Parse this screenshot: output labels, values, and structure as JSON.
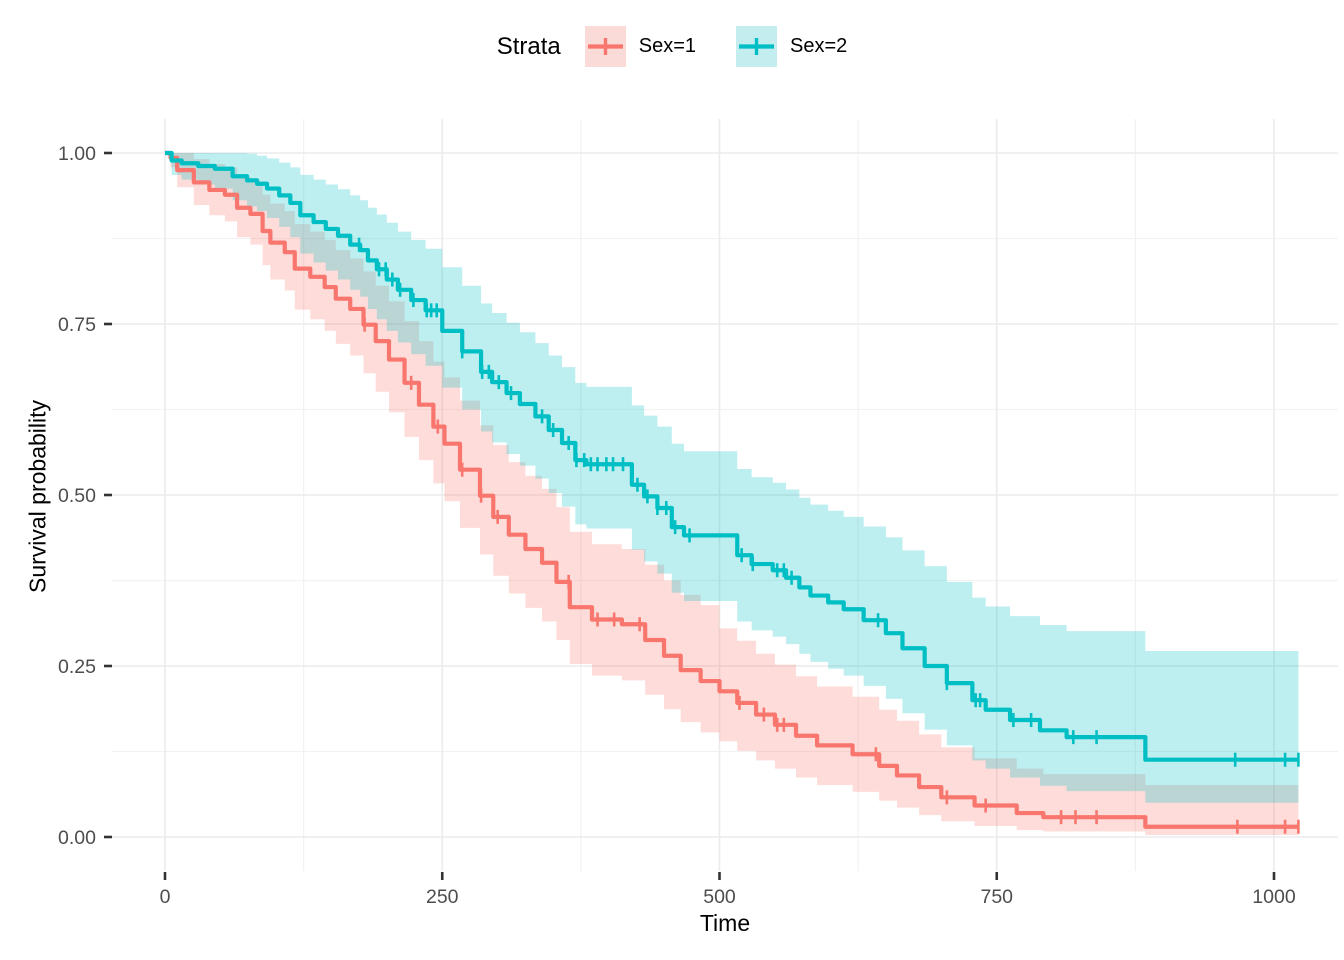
{
  "figure": {
    "background": "#ffffff"
  },
  "legend": {
    "title": "Strata",
    "items": [
      {
        "label": "Sex=1",
        "color": "#F8766D",
        "fill": "#FBDBD8"
      },
      {
        "label": "Sex=2",
        "color": "#00BFC4",
        "fill": "#C4EDEF"
      }
    ]
  },
  "chart_data": {
    "type": "line",
    "subtype": "kaplan-meier-step-with-confidence-bands",
    "title": "",
    "xlabel": "Time",
    "ylabel": "Survival probability",
    "xlim": [
      0,
      1022
    ],
    "ylim": [
      0,
      1
    ],
    "xticks": [
      0,
      250,
      500,
      750,
      1000
    ],
    "yticks": [
      0,
      0.25,
      0.5,
      0.75,
      1
    ],
    "minor_xticks": [
      125,
      375,
      625,
      875
    ],
    "minor_yticks": [
      0.125,
      0.375,
      0.625,
      0.875
    ],
    "grid": true,
    "legend_position": "top",
    "band_opacity": 0.26,
    "grid_major_color": "#EBEBEB",
    "grid_minor_color": "#F2F2F2",
    "tick_color": "#333333",
    "tick_label_color": "#4D4D4D",
    "t_end": 1022,
    "series": [
      {
        "name": "Sex=1",
        "color": "#F8766D",
        "points": [
          [
            0,
            1,
            1,
            1
          ],
          [
            5,
            0.993,
            0.979,
            1
          ],
          [
            11,
            0.975,
            0.95,
            1
          ],
          [
            26,
            0.957,
            0.924,
            0.991
          ],
          [
            40,
            0.946,
            0.909,
            0.984
          ],
          [
            54,
            0.939,
            0.9,
            0.979
          ],
          [
            65,
            0.92,
            0.877,
            0.965
          ],
          [
            77,
            0.911,
            0.866,
            0.958
          ],
          [
            88,
            0.886,
            0.836,
            0.939
          ],
          [
            95,
            0.869,
            0.815,
            0.926
          ],
          [
            108,
            0.855,
            0.799,
            0.915
          ],
          [
            117,
            0.831,
            0.771,
            0.896
          ],
          [
            131,
            0.819,
            0.757,
            0.885
          ],
          [
            144,
            0.804,
            0.74,
            0.873
          ],
          [
            154,
            0.787,
            0.721,
            0.858
          ],
          [
            167,
            0.772,
            0.704,
            0.846
          ],
          [
            179,
            0.749,
            0.678,
            0.827
          ],
          [
            190,
            0.725,
            0.651,
            0.806
          ],
          [
            202,
            0.698,
            0.621,
            0.783
          ],
          [
            216,
            0.664,
            0.585,
            0.754
          ],
          [
            229,
            0.632,
            0.551,
            0.725
          ],
          [
            242,
            0.6,
            0.517,
            0.695
          ],
          [
            252,
            0.575,
            0.491,
            0.672
          ],
          [
            266,
            0.537,
            0.452,
            0.638
          ],
          [
            284,
            0.499,
            0.413,
            0.602
          ],
          [
            296,
            0.468,
            0.382,
            0.573
          ],
          [
            310,
            0.442,
            0.356,
            0.548
          ],
          [
            325,
            0.421,
            0.335,
            0.528
          ],
          [
            340,
            0.401,
            0.315,
            0.509
          ],
          [
            353,
            0.373,
            0.288,
            0.482
          ],
          [
            365,
            0.336,
            0.253,
            0.446
          ],
          [
            385,
            0.318,
            0.236,
            0.428
          ],
          [
            412,
            0.311,
            0.229,
            0.421
          ],
          [
            433,
            0.288,
            0.208,
            0.398
          ],
          [
            450,
            0.265,
            0.187,
            0.375
          ],
          [
            465,
            0.244,
            0.168,
            0.354
          ],
          [
            483,
            0.228,
            0.153,
            0.339
          ],
          [
            500,
            0.213,
            0.14,
            0.305
          ],
          [
            516,
            0.196,
            0.126,
            0.287
          ],
          [
            533,
            0.179,
            0.112,
            0.268
          ],
          [
            550,
            0.164,
            0.1,
            0.252
          ],
          [
            569,
            0.148,
            0.087,
            0.235
          ],
          [
            588,
            0.134,
            0.076,
            0.22
          ],
          [
            620,
            0.121,
            0.066,
            0.205
          ],
          [
            644,
            0.104,
            0.053,
            0.186
          ],
          [
            660,
            0.09,
            0.043,
            0.17
          ],
          [
            680,
            0.073,
            0.032,
            0.15
          ],
          [
            700,
            0.058,
            0.023,
            0.131
          ],
          [
            730,
            0.046,
            0.016,
            0.115
          ],
          [
            768,
            0.035,
            0.01,
            0.1
          ],
          [
            792,
            0.029,
            0.008,
            0.092
          ],
          [
            884,
            0.015,
            0.003,
            0.076
          ]
        ],
        "censor_times": [
          180,
          222,
          246,
          268,
          285,
          300,
          364,
          390,
          405,
          428,
          518,
          540,
          552,
          558,
          641,
          705,
          740,
          808,
          821,
          840,
          967,
          1010,
          1022
        ]
      },
      {
        "name": "Sex=2",
        "color": "#00BFC4",
        "points": [
          [
            0,
            1,
            1,
            1
          ],
          [
            6,
            0.989,
            0.968,
            1
          ],
          [
            15,
            0.985,
            0.961,
            1
          ],
          [
            30,
            0.981,
            0.954,
            1
          ],
          [
            45,
            0.977,
            0.948,
            1
          ],
          [
            61,
            0.966,
            0.931,
            1
          ],
          [
            74,
            0.96,
            0.922,
            0.999
          ],
          [
            83,
            0.955,
            0.915,
            0.996
          ],
          [
            92,
            0.948,
            0.905,
            0.992
          ],
          [
            103,
            0.938,
            0.892,
            0.986
          ],
          [
            113,
            0.927,
            0.877,
            0.979
          ],
          [
            122,
            0.909,
            0.853,
            0.968
          ],
          [
            134,
            0.899,
            0.84,
            0.961
          ],
          [
            145,
            0.889,
            0.828,
            0.954
          ],
          [
            156,
            0.879,
            0.815,
            0.947
          ],
          [
            167,
            0.866,
            0.8,
            0.938
          ],
          [
            176,
            0.858,
            0.79,
            0.931
          ],
          [
            183,
            0.843,
            0.772,
            0.92
          ],
          [
            191,
            0.83,
            0.757,
            0.91
          ],
          [
            200,
            0.815,
            0.74,
            0.898
          ],
          [
            210,
            0.8,
            0.723,
            0.885
          ],
          [
            222,
            0.785,
            0.706,
            0.873
          ],
          [
            235,
            0.77,
            0.689,
            0.86
          ],
          [
            250,
            0.74,
            0.657,
            0.833
          ],
          [
            268,
            0.71,
            0.625,
            0.806
          ],
          [
            285,
            0.68,
            0.593,
            0.78
          ],
          [
            295,
            0.665,
            0.577,
            0.766
          ],
          [
            308,
            0.649,
            0.56,
            0.752
          ],
          [
            320,
            0.633,
            0.543,
            0.738
          ],
          [
            334,
            0.615,
            0.524,
            0.722
          ],
          [
            346,
            0.595,
            0.503,
            0.704
          ],
          [
            358,
            0.576,
            0.483,
            0.687
          ],
          [
            370,
            0.551,
            0.457,
            0.664
          ],
          [
            380,
            0.545,
            0.451,
            0.658
          ],
          [
            421,
            0.515,
            0.42,
            0.631
          ],
          [
            432,
            0.498,
            0.403,
            0.616
          ],
          [
            444,
            0.481,
            0.385,
            0.6
          ],
          [
            457,
            0.453,
            0.357,
            0.575
          ],
          [
            468,
            0.441,
            0.345,
            0.564
          ],
          [
            516,
            0.412,
            0.315,
            0.538
          ],
          [
            529,
            0.399,
            0.302,
            0.526
          ],
          [
            548,
            0.39,
            0.293,
            0.518
          ],
          [
            560,
            0.379,
            0.282,
            0.508
          ],
          [
            572,
            0.365,
            0.268,
            0.496
          ],
          [
            582,
            0.353,
            0.256,
            0.486
          ],
          [
            598,
            0.343,
            0.246,
            0.477
          ],
          [
            612,
            0.333,
            0.236,
            0.468
          ],
          [
            630,
            0.317,
            0.221,
            0.454
          ],
          [
            650,
            0.298,
            0.202,
            0.438
          ],
          [
            665,
            0.276,
            0.181,
            0.419
          ],
          [
            685,
            0.25,
            0.157,
            0.396
          ],
          [
            705,
            0.225,
            0.134,
            0.373
          ],
          [
            728,
            0.2,
            0.112,
            0.35
          ],
          [
            740,
            0.186,
            0.1,
            0.337
          ],
          [
            762,
            0.171,
            0.087,
            0.323
          ],
          [
            789,
            0.156,
            0.075,
            0.31
          ],
          [
            813,
            0.146,
            0.067,
            0.301
          ],
          [
            884,
            0.113,
            0.05,
            0.272
          ]
        ],
        "censor_times": [
          175,
          193,
          199,
          205,
          212,
          224,
          236,
          240,
          245,
          268,
          286,
          292,
          301,
          312,
          340,
          350,
          364,
          371,
          378,
          384,
          390,
          398,
          404,
          413,
          426,
          435,
          444,
          452,
          460,
          473,
          520,
          530,
          552,
          558,
          565,
          643,
          705,
          731,
          735,
          765,
          781,
          819,
          840,
          965,
          1010,
          1022
        ]
      }
    ]
  }
}
